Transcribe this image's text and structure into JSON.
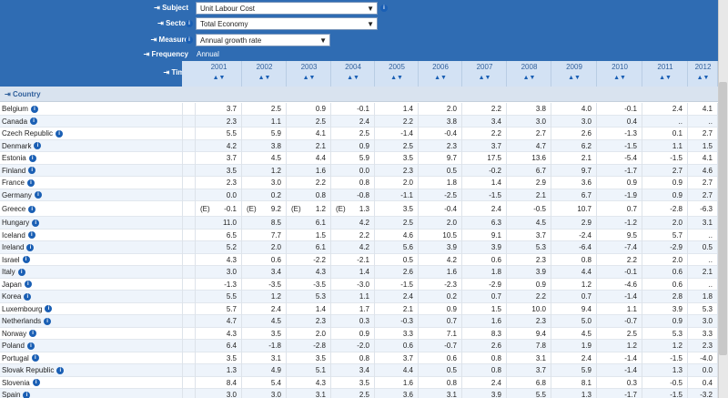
{
  "header": {
    "subject": {
      "label": "Subject",
      "value": "Unit Labour Cost"
    },
    "sector": {
      "label": "Sector",
      "value": "Total Economy"
    },
    "measure": {
      "label": "Measure",
      "value": "Annual growth rate"
    },
    "frequency": {
      "label": "Frequency",
      "value": "Annual"
    },
    "time": {
      "label": "Time"
    },
    "country": {
      "label": "Country"
    }
  },
  "table": {
    "years": [
      "2001",
      "2002",
      "2003",
      "2004",
      "2005",
      "2006",
      "2007",
      "2008",
      "2009",
      "2010",
      "2011",
      "2012"
    ],
    "rows": [
      {
        "country": "Belgium",
        "values": [
          "3.7",
          "2.5",
          "0.9",
          "-0.1",
          "1.4",
          "2.0",
          "2.2",
          "3.8",
          "4.0",
          "-0.1",
          "2.4",
          "4.1"
        ]
      },
      {
        "country": "Canada",
        "values": [
          "2.3",
          "1.1",
          "2.5",
          "2.4",
          "2.2",
          "3.8",
          "3.4",
          "3.0",
          "3.0",
          "0.4",
          "..",
          ".."
        ]
      },
      {
        "country": "Czech Republic",
        "values": [
          "5.5",
          "5.9",
          "4.1",
          "2.5",
          "-1.4",
          "-0.4",
          "2.2",
          "2.7",
          "2.6",
          "-1.3",
          "0.1",
          "2.7"
        ]
      },
      {
        "country": "Denmark",
        "values": [
          "4.2",
          "3.8",
          "2.1",
          "0.9",
          "2.5",
          "2.3",
          "3.7",
          "4.7",
          "6.2",
          "-1.5",
          "1.1",
          "1.5"
        ]
      },
      {
        "country": "Estonia",
        "values": [
          "3.7",
          "4.5",
          "4.4",
          "5.9",
          "3.5",
          "9.7",
          "17.5",
          "13.6",
          "2.1",
          "-5.4",
          "-1.5",
          "4.1"
        ]
      },
      {
        "country": "Finland",
        "values": [
          "3.5",
          "1.2",
          "1.6",
          "0.0",
          "2.3",
          "0.5",
          "-0.2",
          "6.7",
          "9.7",
          "-1.7",
          "2.7",
          "4.6"
        ]
      },
      {
        "country": "France",
        "values": [
          "2.3",
          "3.0",
          "2.2",
          "0.8",
          "2.0",
          "1.8",
          "1.4",
          "2.9",
          "3.6",
          "0.9",
          "0.9",
          "2.7"
        ]
      },
      {
        "country": "Germany",
        "values": [
          "0.0",
          "0.2",
          "0.8",
          "-0.8",
          "-1.1",
          "-2.5",
          "-1.5",
          "2.1",
          "6.7",
          "-1.9",
          "0.9",
          "2.7"
        ]
      },
      {
        "country": "Greece",
        "values": [
          {
            "flag": "(E)",
            "value": "-0.1"
          },
          {
            "flag": "(E)",
            "value": "9.2"
          },
          {
            "flag": "(E)",
            "value": "1.2"
          },
          {
            "flag": "(E)",
            "value": "1.3"
          },
          "3.5",
          "-0.4",
          "2.4",
          "-0.5",
          "10.7",
          "0.7",
          "-2.8",
          "-6.3"
        ]
      },
      {
        "country": "Hungary",
        "values": [
          "11.0",
          "8.5",
          "6.1",
          "4.2",
          "2.5",
          "2.0",
          "6.3",
          "4.5",
          "2.9",
          "-1.2",
          "2.0",
          "3.1"
        ]
      },
      {
        "country": "Iceland",
        "values": [
          "6.5",
          "7.7",
          "1.5",
          "2.2",
          "4.6",
          "10.5",
          "9.1",
          "3.7",
          "-2.4",
          "9.5",
          "5.7",
          ".."
        ]
      },
      {
        "country": "Ireland",
        "values": [
          "5.2",
          "2.0",
          "6.1",
          "4.2",
          "5.6",
          "3.9",
          "3.9",
          "5.3",
          "-6.4",
          "-7.4",
          "-2.9",
          "0.5"
        ]
      },
      {
        "country": "Israel",
        "values": [
          "4.3",
          "0.6",
          "-2.2",
          "-2.1",
          "0.5",
          "4.2",
          "0.6",
          "2.3",
          "0.8",
          "2.2",
          "2.0",
          ".."
        ]
      },
      {
        "country": "Italy",
        "values": [
          "3.0",
          "3.4",
          "4.3",
          "1.4",
          "2.6",
          "1.6",
          "1.8",
          "3.9",
          "4.4",
          "-0.1",
          "0.6",
          "2.1"
        ]
      },
      {
        "country": "Japan",
        "values": [
          "-1.3",
          "-3.5",
          "-3.5",
          "-3.0",
          "-1.5",
          "-2.3",
          "-2.9",
          "0.9",
          "1.2",
          "-4.6",
          "0.6",
          ".."
        ]
      },
      {
        "country": "Korea",
        "values": [
          "5.5",
          "1.2",
          "5.3",
          "1.1",
          "2.4",
          "0.2",
          "0.7",
          "2.2",
          "0.7",
          "-1.4",
          "2.8",
          "1.8"
        ]
      },
      {
        "country": "Luxembourg",
        "values": [
          "5.7",
          "2.4",
          "1.4",
          "1.7",
          "2.1",
          "0.9",
          "1.5",
          "10.0",
          "9.4",
          "1.1",
          "3.9",
          "5.3"
        ]
      },
      {
        "country": "Netherlands",
        "values": [
          "4.7",
          "4.5",
          "2.3",
          "0.3",
          "-0.3",
          "0.7",
          "1.6",
          "2.3",
          "5.0",
          "-0.7",
          "0.9",
          "3.0"
        ]
      },
      {
        "country": "Norway",
        "values": [
          "4.3",
          "3.5",
          "2.0",
          "0.9",
          "3.3",
          "7.1",
          "8.3",
          "9.4",
          "4.5",
          "2.5",
          "5.3",
          "3.3"
        ]
      },
      {
        "country": "Poland",
        "values": [
          "6.4",
          "-1.8",
          "-2.8",
          "-2.0",
          "0.6",
          "-0.7",
          "2.6",
          "7.8",
          "1.9",
          "1.2",
          "1.2",
          "2.3"
        ]
      },
      {
        "country": "Portugal",
        "values": [
          "3.5",
          "3.1",
          "3.5",
          "0.8",
          "3.7",
          "0.6",
          "0.8",
          "3.1",
          "2.4",
          "-1.4",
          "-1.5",
          "-4.0"
        ]
      },
      {
        "country": "Slovak Republic",
        "values": [
          "1.3",
          "4.9",
          "5.1",
          "3.4",
          "4.4",
          "0.5",
          "0.8",
          "3.7",
          "5.9",
          "-1.4",
          "1.3",
          "0.0"
        ]
      },
      {
        "country": "Slovenia",
        "values": [
          "8.4",
          "5.4",
          "4.3",
          "3.5",
          "1.6",
          "0.8",
          "2.4",
          "6.8",
          "8.1",
          "0.3",
          "-0.5",
          "0.4"
        ]
      },
      {
        "country": "Spain",
        "values": [
          "3.0",
          "3.0",
          "3.1",
          "2.5",
          "3.6",
          "3.1",
          "3.9",
          "5.5",
          "1.3",
          "-1.7",
          "-1.5",
          "-3.2"
        ]
      }
    ]
  }
}
